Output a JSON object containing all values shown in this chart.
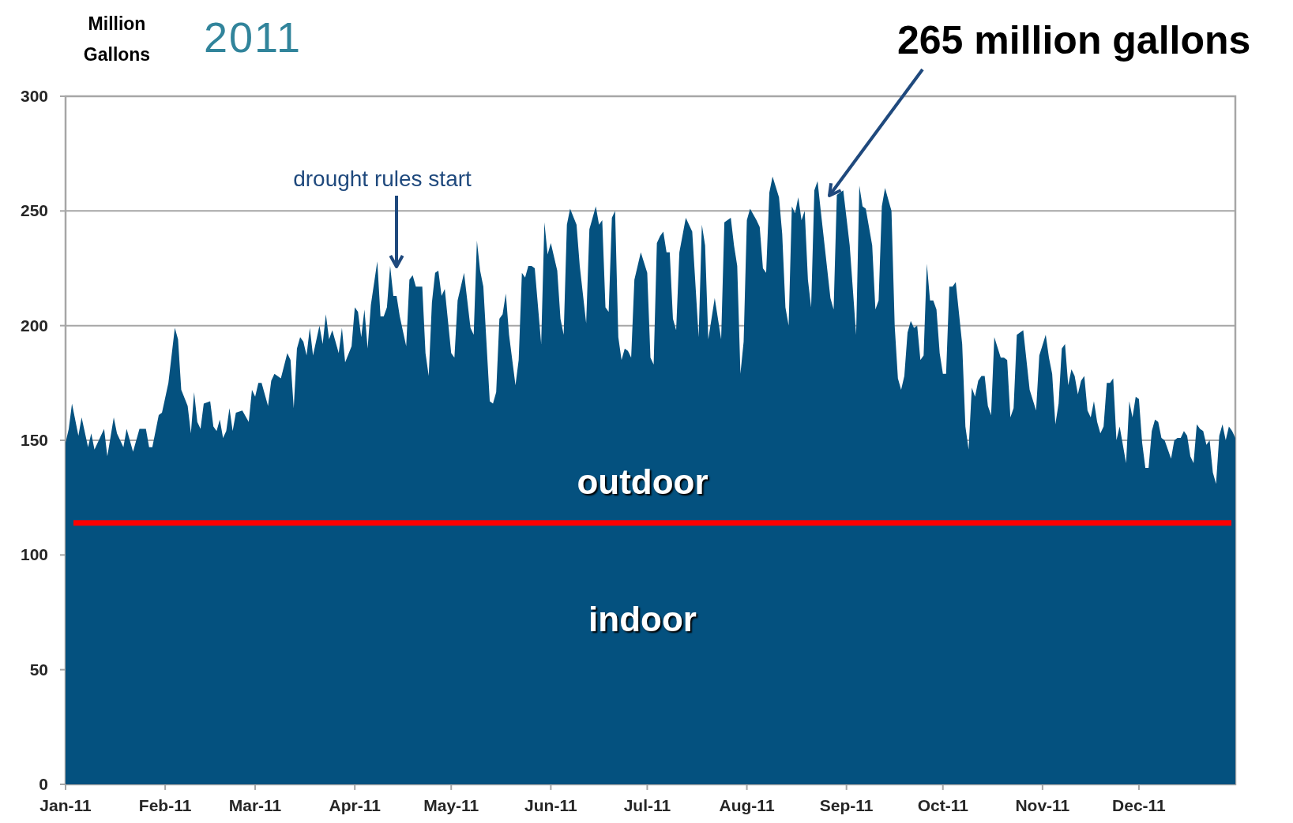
{
  "chart_data": {
    "type": "area",
    "title": "2011",
    "ylabel": "Million Gallons",
    "xlim": [
      "2011-01-01",
      "2011-12-31"
    ],
    "xticks": [
      {
        "value": "2011-01-01",
        "label": "Jan-11"
      },
      {
        "value": "2011-02-01",
        "label": "Feb-11"
      },
      {
        "value": "2011-03-01",
        "label": "Mar-11"
      },
      {
        "value": "2011-04-01",
        "label": "Apr-11"
      },
      {
        "value": "2011-05-01",
        "label": "May-11"
      },
      {
        "value": "2011-06-01",
        "label": "Jun-11"
      },
      {
        "value": "2011-07-01",
        "label": "Jul-11"
      },
      {
        "value": "2011-08-01",
        "label": "Aug-11"
      },
      {
        "value": "2011-09-01",
        "label": "Sep-11"
      },
      {
        "value": "2011-10-01",
        "label": "Oct-11"
      },
      {
        "value": "2011-11-01",
        "label": "Nov-11"
      },
      {
        "value": "2011-12-01",
        "label": "Dec-11"
      }
    ],
    "ylim": [
      0,
      300
    ],
    "yticks": [
      0,
      50,
      100,
      150,
      200,
      250,
      300
    ],
    "grid": "y",
    "x": [
      "2011-01-01",
      "2011-01-02",
      "2011-01-03",
      "2011-01-05",
      "2011-01-06",
      "2011-01-08",
      "2011-01-09",
      "2011-01-10",
      "2011-01-13",
      "2011-01-14",
      "2011-01-16",
      "2011-01-17",
      "2011-01-19",
      "2011-01-20",
      "2011-01-22",
      "2011-01-24",
      "2011-01-26",
      "2011-01-27",
      "2011-01-28",
      "2011-01-30",
      "2011-01-31",
      "2011-02-02",
      "2011-02-04",
      "2011-02-05",
      "2011-02-06",
      "2011-02-08",
      "2011-02-09",
      "2011-02-10",
      "2011-02-11",
      "2011-02-12",
      "2011-02-13",
      "2011-02-15",
      "2011-02-16",
      "2011-02-17",
      "2011-02-18",
      "2011-02-19",
      "2011-02-20",
      "2011-02-21",
      "2011-02-22",
      "2011-02-23",
      "2011-02-25",
      "2011-02-27",
      "2011-02-28",
      "2011-03-01",
      "2011-03-02",
      "2011-03-03",
      "2011-03-05",
      "2011-03-06",
      "2011-03-07",
      "2011-03-09",
      "2011-03-11",
      "2011-03-12",
      "2011-03-13",
      "2011-03-14",
      "2011-03-15",
      "2011-03-16",
      "2011-03-17",
      "2011-03-18",
      "2011-03-19",
      "2011-03-21",
      "2011-03-22",
      "2011-03-23",
      "2011-03-24",
      "2011-03-25",
      "2011-03-27",
      "2011-03-28",
      "2011-03-29",
      "2011-03-31",
      "2011-04-01",
      "2011-04-02",
      "2011-04-03",
      "2011-04-04",
      "2011-04-05",
      "2011-04-06",
      "2011-04-08",
      "2011-04-09",
      "2011-04-10",
      "2011-04-11",
      "2011-04-12",
      "2011-04-13",
      "2011-04-14",
      "2011-04-15",
      "2011-04-17",
      "2011-04-18",
      "2011-04-19",
      "2011-04-20",
      "2011-04-22",
      "2011-04-23",
      "2011-04-24",
      "2011-04-25",
      "2011-04-26",
      "2011-04-27",
      "2011-04-28",
      "2011-04-29",
      "2011-05-01",
      "2011-05-02",
      "2011-05-03",
      "2011-05-05",
      "2011-05-07",
      "2011-05-08",
      "2011-05-09",
      "2011-05-10",
      "2011-05-11",
      "2011-05-13",
      "2011-05-14",
      "2011-05-15",
      "2011-05-16",
      "2011-05-17",
      "2011-05-18",
      "2011-05-19",
      "2011-05-21",
      "2011-05-22",
      "2011-05-23",
      "2011-05-24",
      "2011-05-25",
      "2011-05-26",
      "2011-05-27",
      "2011-05-29",
      "2011-05-30",
      "2011-05-31",
      "2011-06-01",
      "2011-06-03",
      "2011-06-04",
      "2011-06-05",
      "2011-06-06",
      "2011-06-07",
      "2011-06-09",
      "2011-06-10",
      "2011-06-12",
      "2011-06-13",
      "2011-06-15",
      "2011-06-16",
      "2011-06-17",
      "2011-06-18",
      "2011-06-19",
      "2011-06-20",
      "2011-06-21",
      "2011-06-22",
      "2011-06-23",
      "2011-06-24",
      "2011-06-25",
      "2011-06-26",
      "2011-06-27",
      "2011-06-29",
      "2011-07-01",
      "2011-07-02",
      "2011-07-03",
      "2011-07-04",
      "2011-07-05",
      "2011-07-06",
      "2011-07-07",
      "2011-07-08",
      "2011-07-09",
      "2011-07-10",
      "2011-07-11",
      "2011-07-13",
      "2011-07-15",
      "2011-07-17",
      "2011-07-18",
      "2011-07-19",
      "2011-07-20",
      "2011-07-22",
      "2011-07-24",
      "2011-07-25",
      "2011-07-27",
      "2011-07-28",
      "2011-07-29",
      "2011-07-30",
      "2011-07-31",
      "2011-08-01",
      "2011-08-02",
      "2011-08-04",
      "2011-08-05",
      "2011-08-06",
      "2011-08-07",
      "2011-08-08",
      "2011-08-09",
      "2011-08-11",
      "2011-08-12",
      "2011-08-13",
      "2011-08-14",
      "2011-08-15",
      "2011-08-16",
      "2011-08-17",
      "2011-08-18",
      "2011-08-19",
      "2011-08-20",
      "2011-08-21",
      "2011-08-22",
      "2011-08-23",
      "2011-08-24",
      "2011-08-27",
      "2011-08-28",
      "2011-08-29",
      "2011-08-31",
      "2011-09-02",
      "2011-09-04",
      "2011-09-05",
      "2011-09-06",
      "2011-09-07",
      "2011-09-09",
      "2011-09-10",
      "2011-09-11",
      "2011-09-12",
      "2011-09-13",
      "2011-09-15",
      "2011-09-16",
      "2011-09-17",
      "2011-09-18",
      "2011-09-19",
      "2011-09-20",
      "2011-09-21",
      "2011-09-22",
      "2011-09-23",
      "2011-09-24",
      "2011-09-25",
      "2011-09-26",
      "2011-09-27",
      "2011-09-28",
      "2011-09-29",
      "2011-09-30",
      "2011-10-01",
      "2011-10-02",
      "2011-10-03",
      "2011-10-04",
      "2011-10-05",
      "2011-10-07",
      "2011-10-08",
      "2011-10-09",
      "2011-10-10",
      "2011-10-11",
      "2011-10-12",
      "2011-10-13",
      "2011-10-14",
      "2011-10-15",
      "2011-10-16",
      "2011-10-17",
      "2011-10-19",
      "2011-10-20",
      "2011-10-21",
      "2011-10-22",
      "2011-10-23",
      "2011-10-24",
      "2011-10-26",
      "2011-10-28",
      "2011-10-30",
      "2011-10-31",
      "2011-11-02",
      "2011-11-03",
      "2011-11-04",
      "2011-11-05",
      "2011-11-06",
      "2011-11-07",
      "2011-11-08",
      "2011-11-09",
      "2011-11-10",
      "2011-11-11",
      "2011-11-12",
      "2011-11-13",
      "2011-11-14",
      "2011-11-15",
      "2011-11-16",
      "2011-11-17",
      "2011-11-18",
      "2011-11-19",
      "2011-11-20",
      "2011-11-21",
      "2011-11-22",
      "2011-11-23",
      "2011-11-24",
      "2011-11-25",
      "2011-11-27",
      "2011-11-28",
      "2011-11-29",
      "2011-11-30",
      "2011-12-01",
      "2011-12-02",
      "2011-12-03",
      "2011-12-04",
      "2011-12-05",
      "2011-12-06",
      "2011-12-07",
      "2011-12-08",
      "2011-12-09",
      "2011-12-11",
      "2011-12-12",
      "2011-12-13",
      "2011-12-14",
      "2011-12-15",
      "2011-12-16",
      "2011-12-17",
      "2011-12-18",
      "2011-12-19",
      "2011-12-20",
      "2011-12-21",
      "2011-12-22",
      "2011-12-23",
      "2011-12-24",
      "2011-12-25",
      "2011-12-26",
      "2011-12-27",
      "2011-12-28",
      "2011-12-29",
      "2011-12-30",
      "2011-12-31"
    ],
    "series": [
      {
        "color": "#04517f",
        "values": [
          149,
          155,
          166,
          152,
          160,
          147,
          153,
          146,
          155,
          143,
          160,
          153,
          147,
          155,
          145,
          155,
          155,
          147,
          147,
          161,
          162,
          175,
          199,
          194,
          172,
          165,
          153,
          171,
          158,
          155,
          166,
          167,
          156,
          154,
          159,
          151,
          154,
          164,
          154,
          162,
          163,
          158,
          172,
          169,
          175,
          175,
          165,
          176,
          179,
          177,
          188,
          185,
          164,
          190,
          195,
          193,
          187,
          199,
          187,
          200,
          192,
          205,
          194,
          198,
          188,
          199,
          184,
          191,
          208,
          206,
          195,
          207,
          190,
          209,
          228,
          204,
          204,
          208,
          226,
          213,
          213,
          204,
          191,
          220,
          222,
          217,
          217,
          188,
          178,
          210,
          223,
          224,
          213,
          216,
          188,
          186,
          211,
          223,
          199,
          196,
          237,
          224,
          217,
          167,
          166,
          171,
          203,
          205,
          214,
          196,
          174,
          185,
          223,
          221,
          226,
          226,
          225,
          192,
          245,
          231,
          236,
          224,
          203,
          196,
          244,
          251,
          244,
          226,
          201,
          242,
          252,
          244,
          246,
          208,
          206,
          247,
          250,
          195,
          185,
          190,
          189,
          186,
          220,
          232,
          223,
          186,
          183,
          236,
          239,
          241,
          232,
          232,
          203,
          198,
          232,
          247,
          241,
          195,
          244,
          235,
          194,
          212,
          194,
          245,
          247,
          235,
          226,
          179,
          193,
          246,
          251,
          246,
          243,
          225,
          223,
          258,
          265,
          256,
          240,
          208,
          200,
          252,
          249,
          256,
          246,
          250,
          220,
          208,
          259,
          263,
          250,
          212,
          207,
          257,
          259,
          235,
          196,
          261,
          252,
          251,
          235,
          207,
          211,
          252,
          260,
          250,
          200,
          177,
          172,
          178,
          197,
          202,
          199,
          200,
          185,
          187,
          227,
          211,
          211,
          207,
          188,
          179,
          179,
          217,
          217,
          219,
          192,
          156,
          146,
          173,
          169,
          176,
          178,
          178,
          165,
          161,
          195,
          186,
          186,
          185,
          160,
          164,
          196,
          198,
          172,
          163,
          187,
          196,
          186,
          179,
          157,
          166,
          190,
          192,
          174,
          181,
          178,
          170,
          176,
          178,
          163,
          160,
          167,
          158,
          153,
          156,
          175,
          175,
          177,
          150,
          156,
          140,
          167,
          160,
          169,
          168,
          149,
          138,
          138,
          154,
          159,
          158,
          151,
          150,
          142,
          150,
          151,
          151,
          154,
          152,
          143,
          140,
          157,
          155,
          154,
          148,
          150,
          136,
          131,
          152,
          157,
          150,
          156,
          154,
          151
        ]
      }
    ],
    "ref_lines": [
      {
        "axis": "y",
        "value": 114,
        "color": "#ff0000"
      }
    ],
    "annotations": [
      "outdoor",
      "indoor",
      "drought rules start",
      "265 million gallons"
    ]
  }
}
